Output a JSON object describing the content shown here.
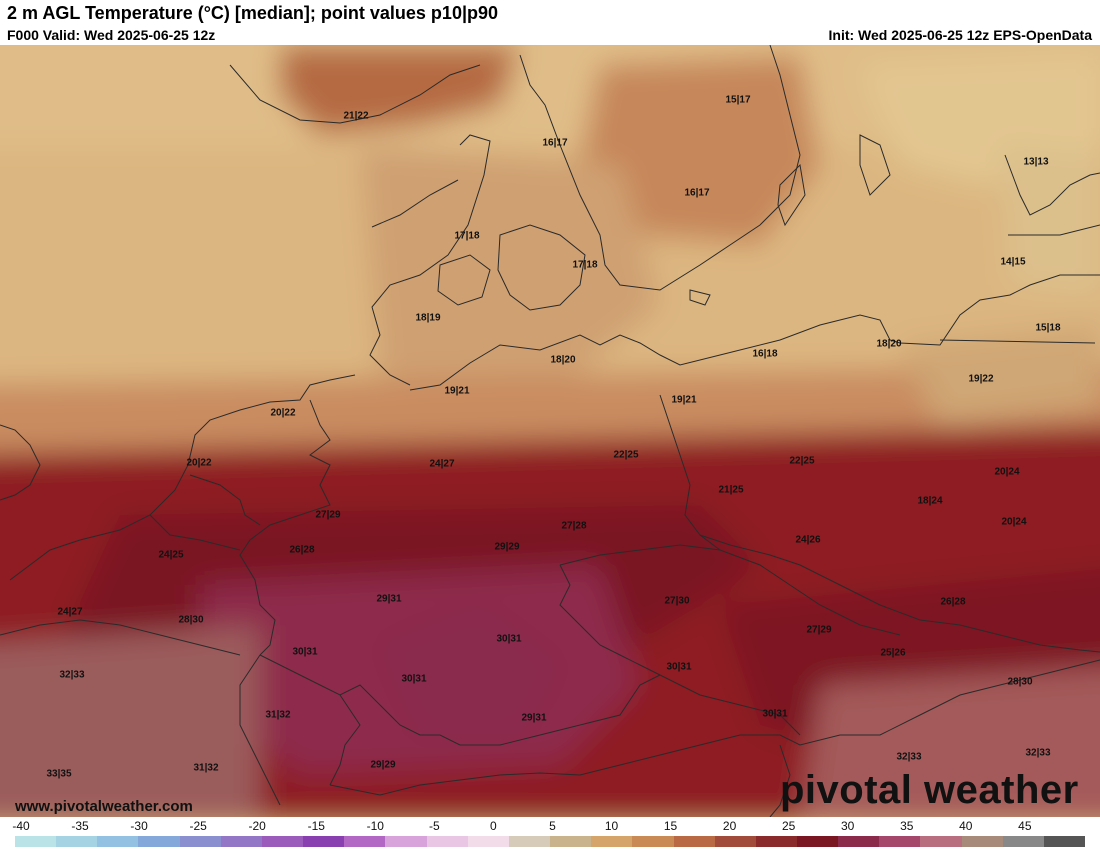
{
  "header": {
    "title": "2 m AGL Temperature (°C) [median]; point values p10|p90",
    "valid": "F000 Valid: Wed 2025-06-25 12z",
    "init": "Init: Wed 2025-06-25 12z EPS-OpenData"
  },
  "map": {
    "points": [
      {
        "text": "21|22"
      },
      {
        "text": "16|17"
      },
      {
        "text": "15|17"
      },
      {
        "text": "16|17"
      },
      {
        "text": "13|13"
      },
      {
        "text": "17|18"
      },
      {
        "text": "17|18"
      },
      {
        "text": "14|15"
      },
      {
        "text": "18|19"
      },
      {
        "text": "15|18"
      },
      {
        "text": "18|20"
      },
      {
        "text": "16|18"
      },
      {
        "text": "18|20"
      },
      {
        "text": "19|21"
      },
      {
        "text": "19|22"
      },
      {
        "text": "19|21"
      },
      {
        "text": "20|22"
      },
      {
        "text": "20|22"
      },
      {
        "text": "24|27"
      },
      {
        "text": "22|25"
      },
      {
        "text": "22|25"
      },
      {
        "text": "20|24"
      },
      {
        "text": "21|25"
      },
      {
        "text": "18|24"
      },
      {
        "text": "27|29"
      },
      {
        "text": "27|28"
      },
      {
        "text": "20|24"
      },
      {
        "text": "24|25"
      },
      {
        "text": "26|28"
      },
      {
        "text": "29|29"
      },
      {
        "text": "24|26"
      },
      {
        "text": "24|27"
      },
      {
        "text": "29|31"
      },
      {
        "text": "27|30"
      },
      {
        "text": "26|28"
      },
      {
        "text": "28|30"
      },
      {
        "text": "30|31"
      },
      {
        "text": "27|29"
      },
      {
        "text": "30|31"
      },
      {
        "text": "25|26"
      },
      {
        "text": "32|33"
      },
      {
        "text": "30|31"
      },
      {
        "text": "30|31"
      },
      {
        "text": "28|30"
      },
      {
        "text": "31|32"
      },
      {
        "text": "29|31"
      },
      {
        "text": "30|31"
      },
      {
        "text": "32|33"
      },
      {
        "text": "32|33"
      },
      {
        "text": "33|35"
      },
      {
        "text": "31|32"
      },
      {
        "text": "29|29"
      }
    ]
  },
  "footer": {
    "site": "www.pivotalweather.com",
    "logo": "pivotal weather"
  },
  "scale": {
    "labels": [
      "-40",
      "-35",
      "-30",
      "-25",
      "-20",
      "-15",
      "-10",
      "-5",
      "0",
      "5",
      "10",
      "15",
      "20",
      "25",
      "30",
      "35",
      "40",
      "45"
    ],
    "colors": [
      "#b9e3e6",
      "#a6d3e4",
      "#93c1e1",
      "#84a8d9",
      "#8a8fcf",
      "#9476c7",
      "#9b5bbb",
      "#8a3fb0",
      "#b267c4",
      "#d7a3da",
      "#e9c6e3",
      "#f2dcea",
      "#d6cbb8",
      "#c9b38c",
      "#d4a46a",
      "#c98a55",
      "#b96a45",
      "#a14c3a",
      "#8a2a2a",
      "#7a1522",
      "#8b2a4a",
      "#a4476a",
      "#b86e7e",
      "#a78a7a",
      "#888888",
      "#555555"
    ]
  }
}
